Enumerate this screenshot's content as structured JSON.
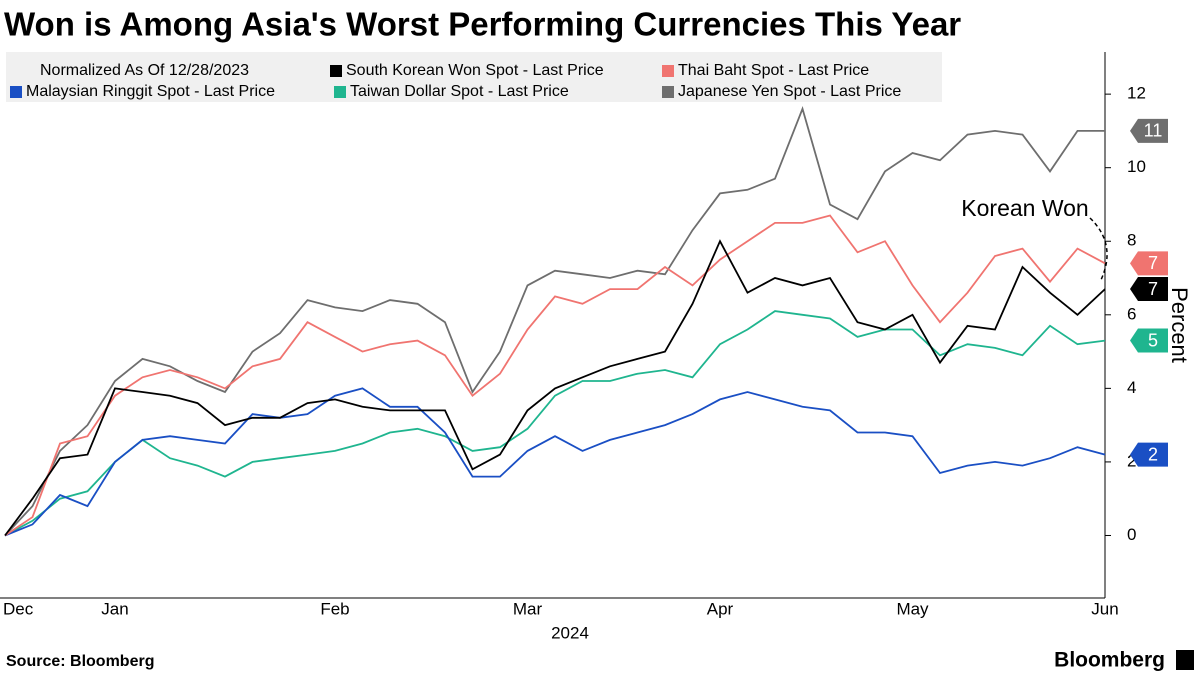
{
  "chart_data": {
    "type": "line",
    "title": "Won is Among Asia's Worst Performing Currencies This Year",
    "legend_title": "Normalized As Of 12/28/2023",
    "ylabel": "Percent",
    "xlabel": "2024",
    "annotation": "Korean Won",
    "source": "Source: Bloomberg",
    "brand": "Bloomberg",
    "categories": [
      "Dec",
      null,
      null,
      null,
      "Jan",
      null,
      null,
      null,
      null,
      null,
      null,
      null,
      "Feb",
      null,
      null,
      null,
      null,
      null,
      null,
      "Mar",
      null,
      null,
      null,
      null,
      null,
      null,
      "Apr",
      null,
      null,
      null,
      null,
      null,
      null,
      "May",
      null,
      null,
      null,
      null,
      null,
      null,
      "Jun"
    ],
    "ylim": [
      -1.7,
      13.2
    ],
    "yticks": [
      0,
      2,
      4,
      6,
      8,
      10,
      12
    ],
    "series": [
      {
        "name": "South Korean Won Spot - Last Price",
        "color": "#000000",
        "end_label": "7",
        "values": [
          0,
          1.0,
          2.1,
          2.2,
          4.0,
          3.9,
          3.8,
          3.6,
          3.0,
          3.2,
          3.2,
          3.6,
          3.7,
          3.5,
          3.4,
          3.4,
          3.4,
          1.8,
          2.2,
          3.4,
          4.0,
          4.3,
          4.6,
          4.8,
          5.0,
          6.3,
          8.0,
          6.6,
          7.0,
          6.8,
          7.0,
          5.8,
          5.6,
          6.0,
          4.7,
          5.7,
          5.6,
          7.3,
          6.6,
          6.0,
          6.7
        ]
      },
      {
        "name": "Thai Baht Spot - Last Price",
        "color": "#f07470",
        "end_label": "7",
        "values": [
          0,
          0.5,
          2.5,
          2.7,
          3.8,
          4.3,
          4.5,
          4.3,
          4.0,
          4.6,
          4.8,
          5.8,
          5.4,
          5.0,
          5.2,
          5.3,
          4.9,
          3.8,
          4.4,
          5.6,
          6.5,
          6.3,
          6.7,
          6.7,
          7.3,
          6.8,
          7.5,
          8.0,
          8.5,
          8.5,
          8.7,
          7.7,
          8.0,
          6.8,
          5.8,
          6.6,
          7.6,
          7.8,
          6.9,
          7.8,
          7.4
        ]
      },
      {
        "name": "Malaysian Ringgit Spot - Last Price",
        "color": "#1a4fc4",
        "end_label": "2",
        "values": [
          0,
          0.3,
          1.1,
          0.8,
          2.0,
          2.6,
          2.7,
          2.6,
          2.5,
          3.3,
          3.2,
          3.3,
          3.8,
          4.0,
          3.5,
          3.5,
          2.8,
          1.6,
          1.6,
          2.3,
          2.7,
          2.3,
          2.6,
          2.8,
          3.0,
          3.3,
          3.7,
          3.9,
          3.7,
          3.5,
          3.4,
          2.8,
          2.8,
          2.7,
          1.7,
          1.9,
          2.0,
          1.9,
          2.1,
          2.4,
          2.2
        ]
      },
      {
        "name": "Taiwan Dollar Spot - Last Price",
        "color": "#1fb58f",
        "end_label": "5",
        "values": [
          0,
          0.4,
          1.0,
          1.2,
          2.0,
          2.6,
          2.1,
          1.9,
          1.6,
          2.0,
          2.1,
          2.2,
          2.3,
          2.5,
          2.8,
          2.9,
          2.7,
          2.3,
          2.4,
          2.9,
          3.8,
          4.2,
          4.2,
          4.4,
          4.5,
          4.3,
          5.2,
          5.6,
          6.1,
          6.0,
          5.9,
          5.4,
          5.6,
          5.6,
          4.9,
          5.2,
          5.1,
          4.9,
          5.7,
          5.2,
          5.3
        ]
      },
      {
        "name": "Japanese Yen Spot - Last Price",
        "color": "#6e6e6e",
        "end_label": "11",
        "values": [
          0,
          0.8,
          2.3,
          3.0,
          4.2,
          4.8,
          4.6,
          4.2,
          3.9,
          5.0,
          5.5,
          6.4,
          6.2,
          6.1,
          6.4,
          6.3,
          5.8,
          3.9,
          5.0,
          6.8,
          7.2,
          7.1,
          7.0,
          7.2,
          7.1,
          8.3,
          9.3,
          9.4,
          9.7,
          11.6,
          9.0,
          8.6,
          9.9,
          10.4,
          10.2,
          10.9,
          11.0,
          10.9,
          9.9,
          11.0,
          11.0
        ]
      }
    ]
  }
}
